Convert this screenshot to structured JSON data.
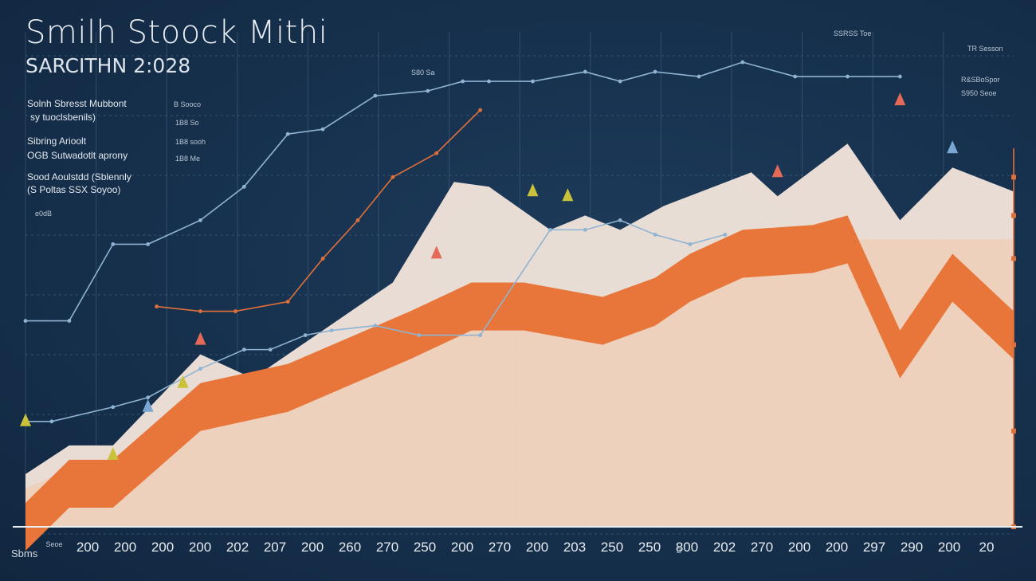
{
  "title": "Smilh Stoock Mithi",
  "subtitle": "SARCITHN 2:028",
  "legend": {
    "groups": [
      {
        "label": "Solnh Sbresst Mubbont",
        "value": "B Sooco"
      },
      {
        "label": "sy tuoclsbenils)",
        "value": "1B8 So"
      },
      {
        "label": "Sibring Arioolt",
        "value": "1B8 sooh"
      },
      {
        "label": "OGB Sutwadotlt aprony",
        "value": "1B8 Me"
      },
      {
        "label": "Sood Aoulstdd (Sblennly",
        "value": ""
      },
      {
        "label": "(S Poltas SSX Soyoo)",
        "value": ""
      },
      {
        "label": "",
        "value": "e0dB"
      }
    ]
  },
  "top_labels": [
    "S80 Sa",
    "SSRSS Toe",
    "TR Sesson",
    "R&SBoSpor",
    "S950 Seoe"
  ],
  "corner_label": "Sbms",
  "x_axis": {
    "ticks": [
      "200",
      "200",
      "200",
      "200",
      "202",
      "207",
      "200",
      "260",
      "270",
      "250",
      "200",
      "270",
      "200",
      "203",
      "250",
      "250",
      "800",
      "202",
      "270",
      "200",
      "200",
      "297",
      "290",
      "200",
      "20"
    ],
    "sublabels": [
      "Seoe",
      "B"
    ]
  },
  "colors": {
    "background": "#17324f",
    "cream": "#f3e6dc",
    "peach": "#f2c9ad",
    "orange": "#e8763a",
    "blue_line": "#8fb3d2",
    "orange_line": "#e0703a",
    "grid": "#44607c",
    "marker_yellow": "#c9c23a",
    "marker_red": "#e46a57",
    "marker_blue": "#7aa6d4"
  },
  "chart_data": {
    "type": "area",
    "title": "Smilh Stoock Mithi",
    "subtitle": "SARCITHN 2:028",
    "xlabel": "",
    "ylabel": "",
    "ylim": [
      0,
      100
    ],
    "x": [
      0,
      1,
      2,
      3,
      4,
      5,
      6,
      7,
      8,
      9,
      10,
      11,
      12,
      13,
      14,
      15,
      16,
      17,
      18,
      19,
      20,
      21,
      22,
      23,
      24,
      25,
      26,
      27,
      28,
      29,
      30,
      31,
      32,
      33,
      34,
      35,
      36,
      37,
      38,
      39,
      40,
      41,
      42,
      43,
      44,
      45,
      46,
      47,
      48,
      49,
      50
    ],
    "series": [
      {
        "style": "area-top",
        "color": "cream",
        "points": [
          [
            0,
            11
          ],
          [
            5,
            17
          ],
          [
            10,
            17
          ],
          [
            20,
            36
          ],
          [
            26,
            31
          ],
          [
            42,
            51
          ],
          [
            49,
            72
          ],
          [
            53,
            71
          ],
          [
            60,
            62
          ],
          [
            64,
            65
          ],
          [
            68,
            62
          ],
          [
            73,
            67
          ],
          [
            83,
            74
          ],
          [
            86,
            69
          ],
          [
            94,
            80
          ],
          [
            100,
            64
          ],
          [
            106,
            75
          ],
          [
            113,
            70
          ]
        ]
      },
      {
        "style": "area-mid",
        "color": "peach",
        "points": [
          [
            0,
            8
          ],
          [
            5,
            12
          ],
          [
            12,
            11
          ],
          [
            20,
            22
          ],
          [
            28,
            28
          ],
          [
            40,
            34
          ],
          [
            53,
            45
          ],
          [
            60,
            47
          ],
          [
            68,
            47
          ],
          [
            72,
            52
          ],
          [
            83,
            58
          ],
          [
            90,
            60
          ],
          [
            96,
            60
          ],
          [
            100,
            60
          ],
          [
            106,
            60
          ],
          [
            113,
            60
          ]
        ]
      },
      {
        "style": "area-band",
        "color": "orange",
        "points": [
          [
            0,
            5
          ],
          [
            5,
            14
          ],
          [
            10,
            14
          ],
          [
            20,
            30
          ],
          [
            30,
            34
          ],
          [
            44,
            45
          ],
          [
            51,
            51
          ],
          [
            57,
            51
          ],
          [
            66,
            48
          ],
          [
            72,
            52
          ],
          [
            76,
            57
          ],
          [
            82,
            62
          ],
          [
            90,
            63
          ],
          [
            94,
            65
          ],
          [
            100,
            41
          ],
          [
            106,
            57
          ],
          [
            113,
            45
          ]
        ]
      },
      {
        "style": "line",
        "color": "blue_line",
        "points": [
          [
            0,
            43
          ],
          [
            5,
            43
          ],
          [
            10,
            59
          ],
          [
            14,
            59
          ],
          [
            20,
            64
          ],
          [
            25,
            71
          ],
          [
            30,
            82
          ],
          [
            34,
            83
          ],
          [
            40,
            90
          ],
          [
            46,
            91
          ],
          [
            50,
            93
          ],
          [
            53,
            93
          ],
          [
            58,
            93
          ],
          [
            64,
            95
          ],
          [
            68,
            93
          ],
          [
            72,
            95
          ],
          [
            77,
            94
          ],
          [
            82,
            97
          ],
          [
            88,
            94
          ],
          [
            94,
            94
          ],
          [
            100,
            94
          ]
        ]
      },
      {
        "style": "line",
        "color": "orange_line",
        "points": [
          [
            15,
            46
          ],
          [
            20,
            45
          ],
          [
            24,
            45
          ],
          [
            30,
            47
          ],
          [
            34,
            56
          ],
          [
            38,
            64
          ],
          [
            42,
            73
          ],
          [
            47,
            78
          ],
          [
            52,
            87
          ]
        ]
      },
      {
        "style": "line",
        "color": "blue_line",
        "points": [
          [
            0,
            22
          ],
          [
            3,
            22
          ],
          [
            10,
            25
          ],
          [
            14,
            27
          ],
          [
            20,
            33
          ],
          [
            25,
            37
          ],
          [
            28,
            37
          ],
          [
            32,
            40
          ],
          [
            35,
            41
          ],
          [
            40,
            42
          ],
          [
            45,
            40
          ],
          [
            52,
            40
          ],
          [
            60,
            62
          ],
          [
            64,
            62
          ],
          [
            68,
            64
          ],
          [
            72,
            61
          ],
          [
            76,
            59
          ],
          [
            80,
            61
          ]
        ]
      }
    ],
    "markers": [
      {
        "x": 0,
        "y": 22,
        "color": "marker_yellow"
      },
      {
        "x": 10,
        "y": 15,
        "color": "marker_yellow"
      },
      {
        "x": 20,
        "y": 39,
        "color": "marker_red"
      },
      {
        "x": 18,
        "y": 30,
        "color": "marker_yellow"
      },
      {
        "x": 14,
        "y": 25,
        "color": "marker_blue"
      },
      {
        "x": 47,
        "y": 57,
        "color": "marker_red"
      },
      {
        "x": 58,
        "y": 70,
        "color": "marker_yellow"
      },
      {
        "x": 62,
        "y": 69,
        "color": "marker_yellow"
      },
      {
        "x": 86,
        "y": 74,
        "color": "marker_red"
      },
      {
        "x": 100,
        "y": 89,
        "color": "marker_red"
      },
      {
        "x": 106,
        "y": 79,
        "color": "marker_blue"
      }
    ],
    "vertical_marker": {
      "x": 113,
      "y_top": 79,
      "y_bottom": 0,
      "color": "orange_line"
    },
    "grid": true
  }
}
